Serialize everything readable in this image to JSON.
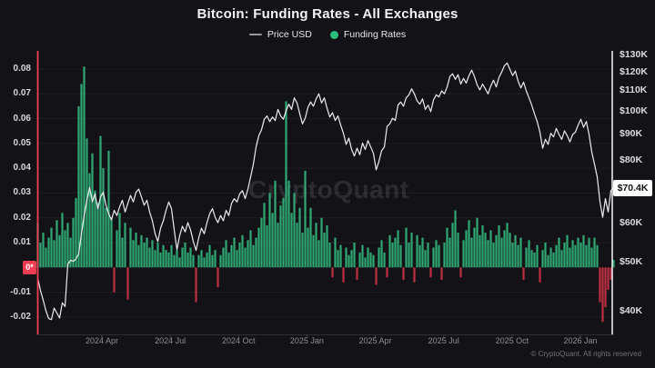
{
  "title": "Bitcoin: Funding Rates - All Exchanges",
  "legend": {
    "price_label": "Price USD",
    "funding_label": "Funding Rates"
  },
  "watermark": "CryptoQuant",
  "copyright": "© CryptoQuant. All rights reserved",
  "axes": {
    "left_zero_badge": "0*",
    "price_badge_label": "$70.4K",
    "price_badge_value_k": 70.4
  },
  "colors": {
    "background": "#131317",
    "accent_red": "#ef3e53",
    "bar_green": "#2fa874",
    "bar_red": "#bf2f44",
    "price_line": "#ececf0",
    "axis_white": "#e9e9ec"
  },
  "chart_data": {
    "type": "bar+line combo",
    "title": "Bitcoin: Funding Rates - All Exchanges",
    "x_tick_labels": [
      "2024 Apr",
      "2024 Jul",
      "2024 Oct",
      "2025 Jan",
      "2025 Apr",
      "2025 Jul",
      "2025 Oct",
      "2026 Jan"
    ],
    "left_axis": {
      "name": "Funding Rates",
      "tick_labels": [
        "0.08",
        "0.07",
        "0.06",
        "0.05",
        "0.04",
        "0.03",
        "0.02",
        "0.01",
        "-0.01",
        "-0.02"
      ],
      "tick_values": [
        0.08,
        0.07,
        0.06,
        0.05,
        0.04,
        0.03,
        0.02,
        0.01,
        -0.01,
        -0.02
      ],
      "range": [
        -0.027,
        0.0875
      ],
      "zero_marker": "0*"
    },
    "right_axis": {
      "name": "Price USD",
      "scale": "log",
      "tick_labels": [
        "$130K",
        "$120K",
        "$110K",
        "$100K",
        "$90K",
        "$80K",
        "$60K",
        "$50K",
        "$40K"
      ],
      "tick_values_k": [
        130,
        120,
        110,
        100,
        90,
        80,
        60,
        50,
        40
      ],
      "current_price_k": 70.4,
      "range_k": [
        38,
        132
      ]
    },
    "series": [
      {
        "name": "Funding Rates",
        "type": "bar",
        "color_positive": "#2fa874",
        "color_negative": "#bf2f44",
        "values": [
          0.018,
          0.01,
          0.014,
          0.008,
          0.012,
          0.016,
          0.011,
          0.019,
          0.013,
          0.022,
          0.015,
          0.018,
          0.012,
          0.02,
          0.028,
          0.065,
          0.074,
          0.081,
          0.052,
          0.038,
          0.046,
          0.031,
          0.026,
          0.053,
          0.04,
          0.024,
          0.047,
          0.02,
          -0.01,
          0.015,
          0.022,
          0.012,
          0.018,
          -0.013,
          0.016,
          0.011,
          0.014,
          0.009,
          0.013,
          0.01,
          0.012,
          0.008,
          0.011,
          0.007,
          0.01,
          0.006,
          0.009,
          0.007,
          0.006,
          0.009,
          0.005,
          0.007,
          0.004,
          0.008,
          0.01,
          0.006,
          0.008,
          0.005,
          -0.014,
          0.005,
          0.007,
          0.004,
          0.006,
          0.009,
          0.005,
          0.007,
          -0.008,
          0.005,
          0.008,
          0.011,
          0.006,
          0.009,
          0.012,
          0.007,
          0.01,
          0.013,
          0.008,
          0.011,
          0.015,
          0.009,
          0.012,
          0.016,
          0.02,
          0.026,
          0.017,
          0.03,
          0.022,
          0.035,
          0.018,
          0.025,
          0.028,
          0.067,
          0.035,
          0.022,
          0.03,
          0.018,
          0.024,
          0.014,
          0.039,
          0.016,
          0.024,
          0.013,
          0.018,
          0.011,
          0.02,
          0.014,
          0.017,
          0.01,
          -0.004,
          0.012,
          0.007,
          0.009,
          -0.006,
          0.008,
          0.005,
          0.007,
          0.01,
          -0.005,
          0.006,
          0.009,
          0.004,
          0.008,
          0.006,
          0.005,
          -0.007,
          0.008,
          0.011,
          0.006,
          -0.004,
          0.013,
          0.01,
          0.012,
          0.015,
          0.009,
          -0.005,
          0.016,
          0.01,
          0.014,
          -0.006,
          0.013,
          0.009,
          0.012,
          0.007,
          0.01,
          -0.004,
          0.008,
          0.011,
          0.009,
          -0.005,
          0.01,
          0.016,
          0.012,
          0.018,
          0.023,
          0.014,
          -0.004,
          0.011,
          0.015,
          0.019,
          0.012,
          0.016,
          0.02,
          0.013,
          0.017,
          0.014,
          0.011,
          0.015,
          0.01,
          0.013,
          0.017,
          0.012,
          0.015,
          0.018,
          0.014,
          0.01,
          0.013,
          0.009,
          0.012,
          -0.005,
          0.008,
          0.011,
          0.007,
          0.006,
          0.009,
          -0.006,
          0.007,
          0.01,
          0.005,
          0.008,
          0.006,
          0.009,
          0.012,
          0.007,
          0.01,
          0.013,
          0.008,
          0.011,
          0.009,
          0.012,
          0.01,
          0.013,
          0.009,
          0.012,
          0.008,
          0.012,
          0.009,
          -0.014,
          -0.022,
          -0.016,
          -0.009,
          -0.005,
          0.003
        ]
      },
      {
        "name": "Price USD",
        "type": "line",
        "unit": "USD thousands",
        "color": "#ececf0",
        "values": [
          46.5,
          43.9,
          42.0,
          40.0,
          38.6,
          38.4,
          40.5,
          39.6,
          38.7,
          41.5,
          40.8,
          49.5,
          50.5,
          50.2,
          50.8,
          52.0,
          57.0,
          62.0,
          66.5,
          70.5,
          66.0,
          68.5,
          64.0,
          67.5,
          69.0,
          65.0,
          62.5,
          60.8,
          63.5,
          62.0,
          64.5,
          66.5,
          63.0,
          65.5,
          68.0,
          66.0,
          69.0,
          70.0,
          67.5,
          65.0,
          66.5,
          63.0,
          60.5,
          57.0,
          55.0,
          58.5,
          60.5,
          63.5,
          66.0,
          64.0,
          58.0,
          53.0,
          56.5,
          59.0,
          57.5,
          60.0,
          58.0,
          55.0,
          52.8,
          56.0,
          58.5,
          57.0,
          60.0,
          62.5,
          64.0,
          61.5,
          60.0,
          62.0,
          60.5,
          63.5,
          62.0,
          65.5,
          67.0,
          66.0,
          68.5,
          69.5,
          67.0,
          70.0,
          74.0,
          78.5,
          85.0,
          89.5,
          92.0,
          96.5,
          98.0,
          95.5,
          97.5,
          96.0,
          101.0,
          98.0,
          96.5,
          100.5,
          103.5,
          101.0,
          106.5,
          104.0,
          99.0,
          94.5,
          97.0,
          102.0,
          104.5,
          102.5,
          106.0,
          108.5,
          104.0,
          106.5,
          101.5,
          97.5,
          99.5,
          96.0,
          98.0,
          94.0,
          90.5,
          86.0,
          88.5,
          84.0,
          81.5,
          84.5,
          82.0,
          86.5,
          84.0,
          87.5,
          85.0,
          82.5,
          76.5,
          79.5,
          83.5,
          85.0,
          93.5,
          94.5,
          97.0,
          96.0,
          103.0,
          104.5,
          102.5,
          106.5,
          108.0,
          111.0,
          108.5,
          105.0,
          103.5,
          106.0,
          101.0,
          103.0,
          100.0,
          105.5,
          108.0,
          107.0,
          110.0,
          108.5,
          112.0,
          117.5,
          119.0,
          116.0,
          118.5,
          113.5,
          116.5,
          114.0,
          118.0,
          121.0,
          117.5,
          113.0,
          110.5,
          113.5,
          111.0,
          108.5,
          112.5,
          115.5,
          112.0,
          117.0,
          120.0,
          123.5,
          125.0,
          121.5,
          118.0,
          120.5,
          115.0,
          111.5,
          114.5,
          110.0,
          106.5,
          103.0,
          99.0,
          95.5,
          91.0,
          84.5,
          88.0,
          86.0,
          90.5,
          89.0,
          92.5,
          90.0,
          88.0,
          91.5,
          89.5,
          87.0,
          90.0,
          91.0,
          94.0,
          96.5,
          93.0,
          95.5,
          90.0,
          83.0,
          78.5,
          74.0,
          66.0,
          61.5,
          67.0,
          63.0,
          69.5,
          70.4
        ]
      }
    ]
  }
}
